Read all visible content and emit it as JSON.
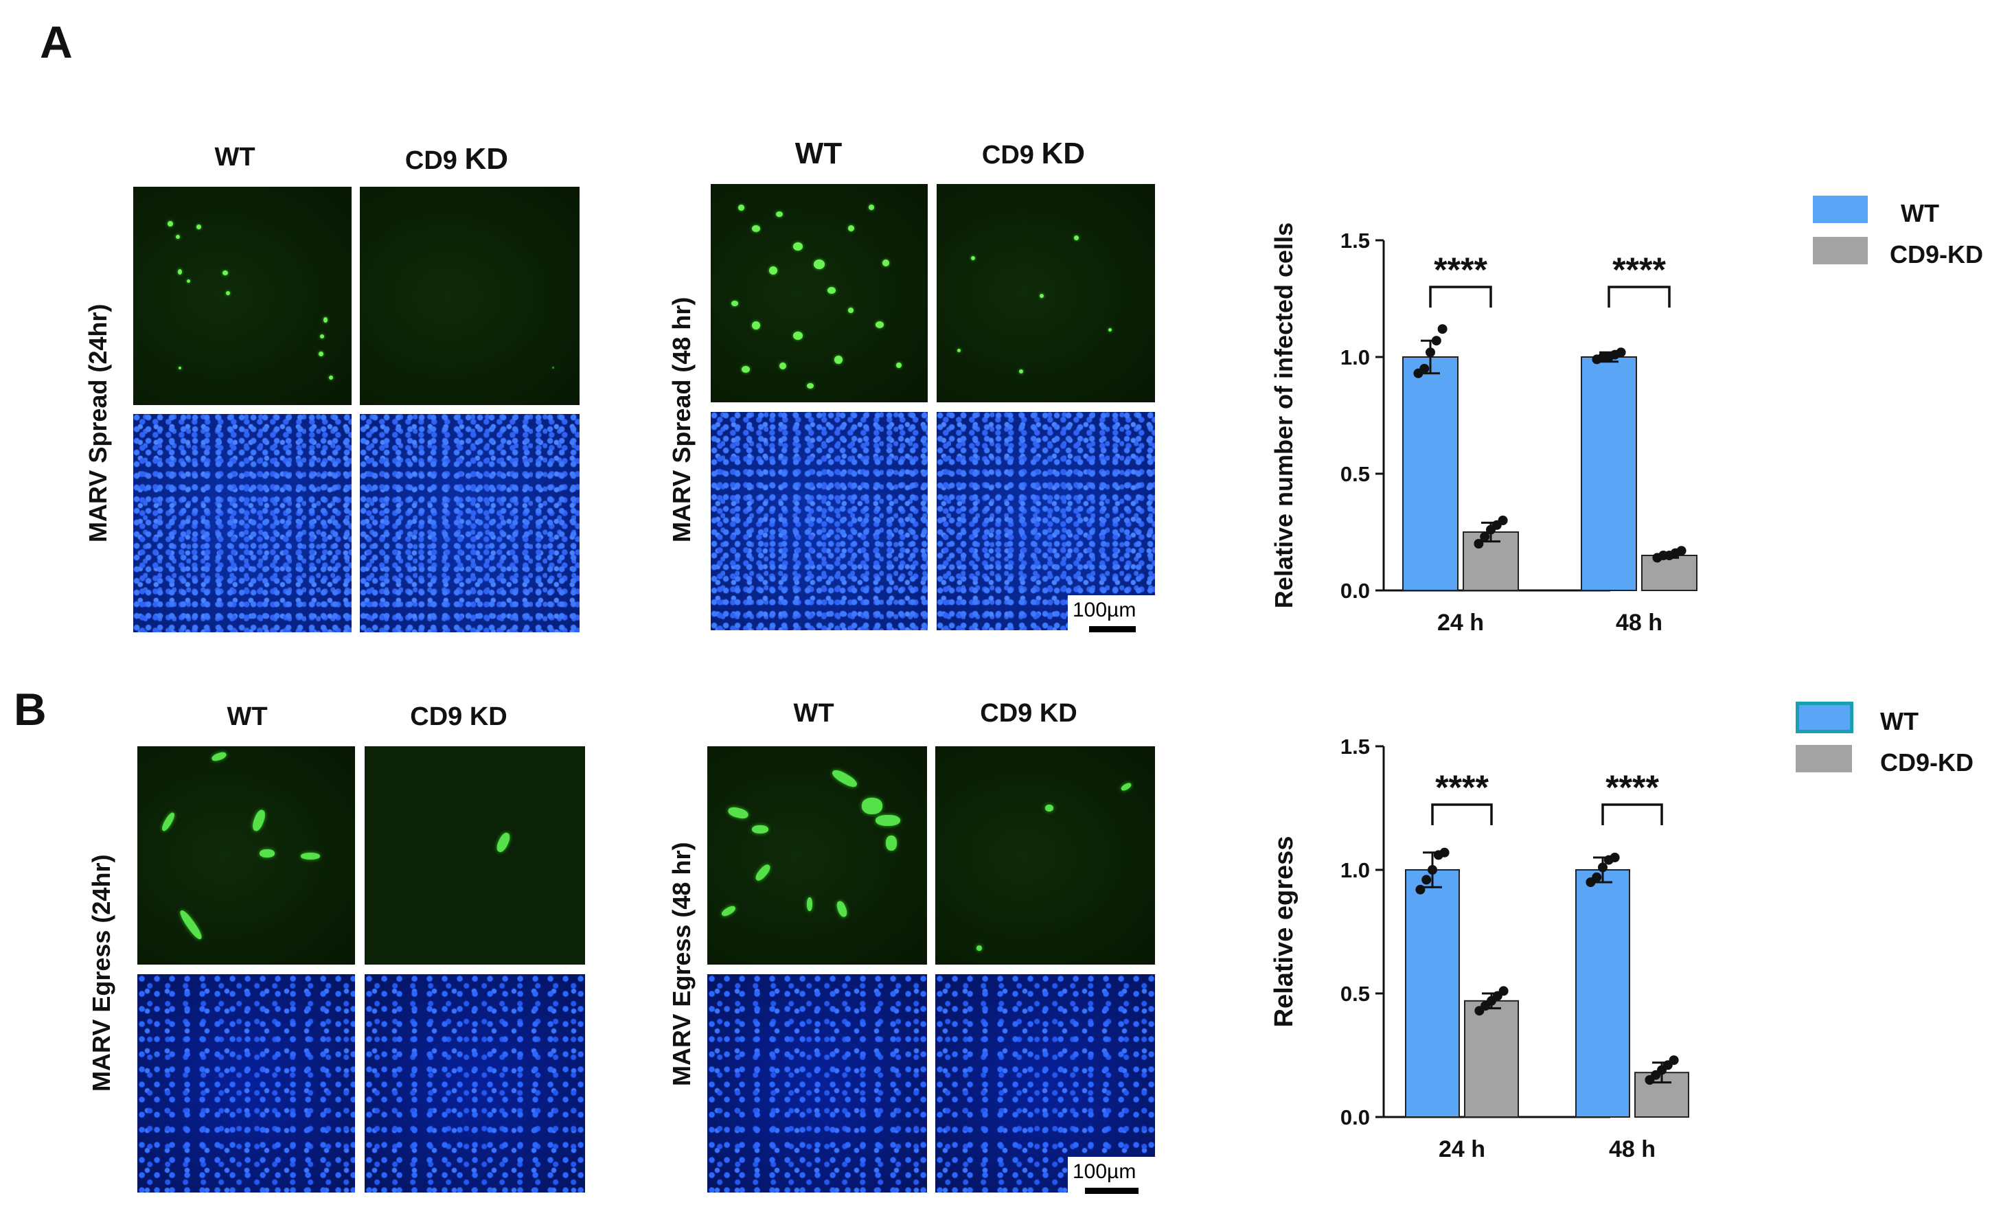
{
  "panel_a": {
    "letter": "A",
    "micrographs": {
      "left": {
        "row_label": "MARV Spread (24hr)",
        "col_wt": "WT",
        "col_kd_prefix": "CD9",
        "col_kd_suffix": "KD"
      },
      "right": {
        "row_label": "MARV Spread (48 hr)",
        "col_wt": "WT",
        "col_kd_prefix": "CD9",
        "col_kd_suffix": "KD"
      },
      "scale_bar": "100µm"
    },
    "legend": {
      "wt": "WT",
      "kd": "CD9-KD"
    }
  },
  "panel_b": {
    "letter": "B",
    "micrographs": {
      "left": {
        "row_label": "MARV Egress (24hr)",
        "col_wt": "WT",
        "col_kd": "CD9 KD"
      },
      "right": {
        "row_label": "MARV Egress (48 hr)",
        "col_wt": "WT",
        "col_kd": "CD9 KD"
      },
      "scale_bar": "100µm"
    },
    "legend": {
      "wt": "WT",
      "kd": "CD9-KD"
    }
  },
  "colors": {
    "wt_bar": "#5aa5f5",
    "kd_bar": "#a3a3a3",
    "wt_legend_b_border": "#1a9fb0"
  },
  "chart_data": [
    {
      "type": "bar",
      "panel": "A",
      "categories": [
        "24 h",
        "48 h"
      ],
      "ylabel": "Relative number of infected cells",
      "ylim": [
        0,
        1.5
      ],
      "yticks": [
        "0.0",
        "0.5",
        "1.0",
        "1.5"
      ],
      "series": [
        {
          "name": "WT",
          "values": [
            1.0,
            1.0
          ],
          "err": [
            0.07,
            0.02
          ],
          "points": [
            [
              0.93,
              0.95,
              1.02,
              1.07,
              1.12
            ],
            [
              0.99,
              1.0,
              1.0,
              1.01,
              1.02
            ]
          ]
        },
        {
          "name": "CD9-KD",
          "values": [
            0.25,
            0.15
          ],
          "err": [
            0.04,
            0.01
          ],
          "points": [
            [
              0.2,
              0.23,
              0.26,
              0.28,
              0.3
            ],
            [
              0.14,
              0.15,
              0.15,
              0.16,
              0.17
            ]
          ]
        }
      ],
      "significance": [
        "****",
        "****"
      ]
    },
    {
      "type": "bar",
      "panel": "B",
      "categories": [
        "24 h",
        "48 h"
      ],
      "ylabel": "Relative egress",
      "ylim": [
        0,
        1.5
      ],
      "yticks": [
        "0.0",
        "0.5",
        "1.0",
        "1.5"
      ],
      "series": [
        {
          "name": "WT",
          "values": [
            1.0,
            1.0
          ],
          "err": [
            0.07,
            0.05
          ],
          "points": [
            [
              0.92,
              0.96,
              1.0,
              1.06,
              1.07
            ],
            [
              0.95,
              0.97,
              1.01,
              1.04,
              1.05
            ]
          ]
        },
        {
          "name": "CD9-KD",
          "values": [
            0.47,
            0.18
          ],
          "err": [
            0.03,
            0.04
          ],
          "points": [
            [
              0.43,
              0.45,
              0.47,
              0.49,
              0.51
            ],
            [
              0.15,
              0.17,
              0.19,
              0.21,
              0.23
            ]
          ]
        }
      ],
      "significance": [
        "****",
        "****"
      ]
    }
  ]
}
